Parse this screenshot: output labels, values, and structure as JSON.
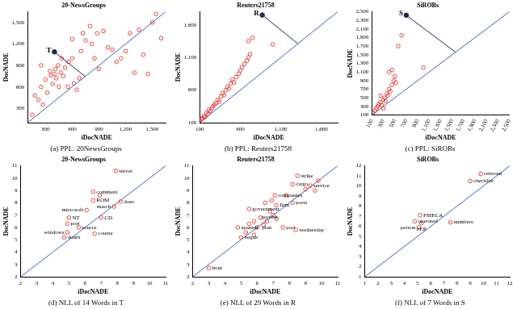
{
  "chart_data": [
    {
      "type": "scatter",
      "title": "20-NewsGroups",
      "caption": "(a) PPL: 20NewsGroups",
      "x_label": "iDocNADE",
      "y_label": "DocNADE",
      "color": "#e0342f",
      "marker": "circle",
      "grid": false,
      "xlim": [
        100,
        1650
      ],
      "ylim": [
        100,
        1650
      ],
      "xticks": [
        300,
        600,
        900,
        {
          "value": 1200,
          "label": "1,200"
        },
        {
          "value": 1500,
          "label": "1,500"
        }
      ],
      "yticks": [
        300,
        600,
        900,
        {
          "value": 1200,
          "label": "1,200"
        },
        {
          "value": 1500,
          "label": "1,500"
        }
      ],
      "x": [
        150,
        180,
        220,
        250,
        270,
        300,
        320,
        350,
        360,
        380,
        400,
        410,
        420,
        440,
        450,
        470,
        480,
        500,
        520,
        550,
        560,
        600,
        620,
        650,
        680,
        700,
        720,
        750,
        800,
        820,
        850,
        880,
        900,
        950,
        1000,
        1050,
        1100,
        1150,
        1200,
        1250,
        1300,
        1350,
        1400,
        1450,
        1500,
        1540,
        1600,
        250,
        600
      ],
      "values": [
        210,
        480,
        420,
        600,
        350,
        700,
        520,
        820,
        760,
        640,
        780,
        850,
        720,
        900,
        600,
        800,
        1000,
        750,
        870,
        600,
        950,
        1000,
        650,
        560,
        720,
        1100,
        1350,
        1250,
        1450,
        1200,
        1000,
        1350,
        850,
        1380,
        1150,
        1120,
        950,
        1000,
        1100,
        1350,
        800,
        1400,
        1050,
        780,
        1500,
        1620,
        1280,
        900,
        1270
      ],
      "annotations": [
        {
          "text": "T",
          "x": 400,
          "y": 1090
        }
      ]
    },
    {
      "type": "scatter",
      "title": "Reuters21758",
      "caption": "(b) PPL: Reuters21758",
      "x_label": "iDocNADE",
      "y_label": "DocNADE",
      "color": "#e0342f",
      "marker": "circle",
      "grid": false,
      "xlim": [
        100,
        1800
      ],
      "ylim": [
        100,
        1800
      ],
      "xticks": [
        100,
        600,
        {
          "value": 1100,
          "label": "1,100"
        },
        {
          "value": 1600,
          "label": "1,600"
        }
      ],
      "yticks": [
        100,
        600,
        {
          "value": 1100,
          "label": "1,100"
        },
        {
          "value": 1600,
          "label": "1,600"
        }
      ],
      "x": [
        100,
        120,
        130,
        150,
        160,
        180,
        200,
        210,
        230,
        250,
        260,
        280,
        300,
        320,
        340,
        360,
        380,
        400,
        420,
        440,
        460,
        480,
        500,
        520,
        550,
        580,
        600,
        620,
        650,
        680,
        700,
        720,
        750,
        700,
        1000
      ],
      "values": [
        130,
        150,
        170,
        200,
        180,
        250,
        230,
        300,
        280,
        320,
        350,
        380,
        400,
        450,
        420,
        500,
        550,
        520,
        600,
        650,
        620,
        700,
        760,
        720,
        800,
        850,
        900,
        950,
        1000,
        1050,
        1100,
        1150,
        1400,
        1350,
        1300
      ],
      "annotations": [
        {
          "text": "R",
          "x": 870,
          "y": 1750
        }
      ]
    },
    {
      "type": "scatter",
      "title": "SiROBs",
      "caption": "(c) PPL: SiROBs",
      "x_label": "iDocNADE",
      "y_label": "DocNADE",
      "color": "#e0342f",
      "marker": "circle",
      "grid": false,
      "xlim": [
        100,
        2500
      ],
      "ylim": [
        100,
        2500
      ],
      "xticks": [
        100,
        300,
        500,
        700,
        900,
        {
          "value": 1100,
          "label": "1,100"
        },
        {
          "value": 1300,
          "label": "1,300"
        },
        {
          "value": 1500,
          "label": "1,500"
        },
        {
          "value": 1700,
          "label": "1,700"
        },
        {
          "value": 1900,
          "label": "1,900"
        },
        {
          "value": 2100,
          "label": "2,100"
        },
        {
          "value": 2300,
          "label": "2,300"
        },
        {
          "value": 2500,
          "label": "2,500"
        }
      ],
      "yticks": [
        100,
        300,
        500,
        700,
        900,
        {
          "value": 1100,
          "label": "1,100"
        },
        {
          "value": 1300,
          "label": "1,300"
        },
        {
          "value": 1500,
          "label": "1,500"
        },
        {
          "value": 1700,
          "label": "1,700"
        },
        {
          "value": 1900,
          "label": "1,900"
        },
        {
          "value": 2100,
          "label": "2,100"
        },
        {
          "value": 2300,
          "label": "2,300"
        },
        {
          "value": 2500,
          "label": "2,500"
        }
      ],
      "x": [
        120,
        150,
        180,
        200,
        220,
        250,
        270,
        300,
        320,
        340,
        360,
        380,
        400,
        420,
        450,
        480,
        500,
        520,
        400,
        450,
        560,
        620,
        1000,
        300,
        250
      ],
      "values": [
        150,
        200,
        260,
        300,
        350,
        400,
        330,
        450,
        500,
        420,
        600,
        550,
        700,
        650,
        800,
        900,
        1000,
        850,
        1100,
        1150,
        1700,
        1950,
        1200,
        250,
        550
      ],
      "annotations": [
        {
          "text": "S",
          "x": 700,
          "y": 2420
        }
      ]
    },
    {
      "type": "scatter",
      "title": "20-NewsGroups",
      "caption": "(d) NLL of 14 Words in T",
      "x_label": "iDocNADE",
      "y_label": "DocNADE",
      "color": "#e0342f",
      "marker": "circle",
      "grid": false,
      "xlim": [
        2,
        11
      ],
      "ylim": [
        2,
        11
      ],
      "xticks": [
        2,
        3,
        4,
        5,
        6,
        7,
        8,
        9,
        10,
        11
      ],
      "yticks": [
        2,
        3,
        4,
        5,
        6,
        7,
        8,
        9,
        10,
        11
      ],
      "x": [
        7.9,
        6.5,
        6.9,
        6.5,
        8.2,
        7.8,
        6.1,
        7.0,
        5.0,
        4.9,
        5.6,
        4.9,
        4.7,
        6.6
      ],
      "values": [
        10.6,
        8.9,
        8.6,
        8.2,
        8.1,
        7.7,
        7.4,
        6.8,
        6.8,
        6.3,
        6.0,
        5.6,
        5.2,
        5.5
      ],
      "labels": [
        "server",
        "comment",
        null,
        "ROM",
        "does",
        "march",
        "microsoft",
        "CD",
        "NT",
        "port",
        "source",
        "windows",
        "doubt",
        "course"
      ]
    },
    {
      "type": "scatter",
      "title": "Reuters21758",
      "caption": "(e) NLL of 29 Words in R",
      "x_label": "iDocNADE",
      "y_label": "DocNADE",
      "color": "#e0342f",
      "marker": "circle",
      "grid": false,
      "xlim": [
        2,
        11
      ],
      "ylim": [
        2,
        11
      ],
      "xticks": [
        2,
        3,
        4,
        5,
        6,
        7,
        8,
        9,
        10,
        11
      ],
      "yticks": [
        2,
        3,
        4,
        5,
        6,
        7,
        8,
        9,
        10,
        11
      ],
      "x": [
        8.5,
        8.2,
        9.3,
        7.1,
        8.2,
        7.2,
        5.5,
        6.8,
        6.6,
        7.6,
        4.8,
        8.4,
        5.0,
        3.0,
        9.8,
        9.6,
        9.0,
        7.8,
        6.9,
        6.5,
        7.0,
        6.2,
        6.4,
        5.8,
        5.5,
        6.0,
        5.3,
        5.8,
        7.2
      ],
      "values": [
        10.2,
        9.5,
        9.4,
        8.6,
        8.0,
        7.8,
        7.5,
        7.3,
        6.5,
        6.0,
        6.0,
        5.8,
        5.2,
        2.7,
        9.8,
        9.0,
        9.1,
        8.6,
        8.2,
        8.0,
        7.0,
        6.8,
        6.2,
        6.5,
        6.3,
        6.0,
        5.6,
        5.4,
        6.7
      ],
      "labels": [
        "strike",
        "cargo",
        "service",
        "companies",
        "ports",
        "firm",
        "government",
        "protest",
        "plan",
        "port",
        "spanish",
        "wednesday",
        "began",
        "hour",
        null,
        null,
        null,
        null,
        null,
        null,
        null,
        null,
        null,
        null,
        null,
        null,
        null,
        null,
        null
      ]
    },
    {
      "type": "scatter",
      "title": "SiROBs",
      "caption": "(f) NLL of 7 Words in S",
      "x_label": "iDocNADE",
      "y_label": "DocNADE",
      "color": "#e0342f",
      "marker": "circle",
      "grid": false,
      "xlim": [
        1,
        12
      ],
      "ylim": [
        1,
        12
      ],
      "xticks": [
        1,
        2,
        3,
        4,
        5,
        6,
        7,
        8,
        9,
        10,
        11,
        12
      ],
      "yticks": [
        1,
        2,
        3,
        4,
        5,
        6,
        7,
        8,
        9,
        10,
        11,
        12
      ],
      "x": [
        9.8,
        9.0,
        5.2,
        4.8,
        5.3,
        5.1,
        7.5
      ],
      "values": [
        11.2,
        10.5,
        7.1,
        6.5,
        6.3,
        5.9,
        6.4
      ],
      "labels": [
        "relevant",
        "checklist",
        "FMECA",
        "operated",
        "FEP",
        "person",
        "numbers"
      ]
    }
  ]
}
